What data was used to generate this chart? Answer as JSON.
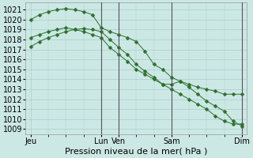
{
  "bg_color": "#cce8e4",
  "grid_color": "#aacccc",
  "line_color": "#2d6e2d",
  "marker_color": "#2d6e2d",
  "xlabel_text": "Pression niveau de la mer( hPa )",
  "ylim": [
    1008.5,
    1021.7
  ],
  "yticks": [
    1009,
    1010,
    1011,
    1012,
    1013,
    1014,
    1015,
    1016,
    1017,
    1018,
    1019,
    1020,
    1021
  ],
  "xlim": [
    -0.3,
    12.3
  ],
  "xtick_labels": [
    "Jeu",
    "Lun",
    "Ven",
    "Sam",
    "Dim"
  ],
  "xtick_positions": [
    0,
    4,
    5,
    8,
    12
  ],
  "vline_positions": [
    4,
    5,
    8,
    12
  ],
  "series1_x": [
    0,
    0.5,
    1,
    1.5,
    2,
    2.5,
    3,
    3.5,
    4,
    4.5,
    5,
    5.5,
    6,
    6.5,
    7,
    7.5,
    8,
    8.5,
    9,
    9.5,
    10,
    10.5,
    11,
    11.5,
    12
  ],
  "series1_y": [
    1020.0,
    1020.5,
    1020.8,
    1021.0,
    1021.1,
    1021.0,
    1020.8,
    1020.5,
    1019.2,
    1018.8,
    1018.5,
    1018.2,
    1017.8,
    1016.8,
    1015.5,
    1015.0,
    1014.2,
    1013.8,
    1013.5,
    1013.2,
    1013.0,
    1012.8,
    1012.5,
    1012.5,
    1012.5
  ],
  "series2_x": [
    0,
    0.5,
    1,
    1.5,
    2,
    2.5,
    3,
    3.5,
    4,
    4.5,
    5,
    5.5,
    6,
    6.5,
    7,
    7.5,
    8,
    8.5,
    9,
    9.5,
    10,
    10.5,
    11,
    11.5,
    12
  ],
  "series2_y": [
    1017.3,
    1017.8,
    1018.2,
    1018.5,
    1018.8,
    1019.0,
    1019.1,
    1019.0,
    1018.8,
    1018.0,
    1017.2,
    1016.5,
    1015.5,
    1014.8,
    1014.2,
    1013.5,
    1013.0,
    1012.5,
    1012.0,
    1011.5,
    1011.0,
    1010.3,
    1009.8,
    1009.5,
    1009.5
  ],
  "series3_x": [
    0,
    0.5,
    1,
    1.5,
    2,
    2.5,
    3,
    3.5,
    4,
    4.5,
    5,
    5.5,
    6,
    6.5,
    7,
    7.5,
    8,
    8.5,
    9,
    9.5,
    10,
    10.5,
    11,
    11.5,
    12
  ],
  "series3_y": [
    1018.2,
    1018.5,
    1018.8,
    1019.0,
    1019.2,
    1019.0,
    1018.8,
    1018.5,
    1018.2,
    1017.2,
    1016.5,
    1015.8,
    1015.0,
    1014.5,
    1014.0,
    1013.5,
    1013.5,
    1013.8,
    1013.2,
    1012.5,
    1011.8,
    1011.3,
    1010.8,
    1009.8,
    1009.3
  ],
  "fontsize_xlabel": 8,
  "fontsize_tick": 7
}
